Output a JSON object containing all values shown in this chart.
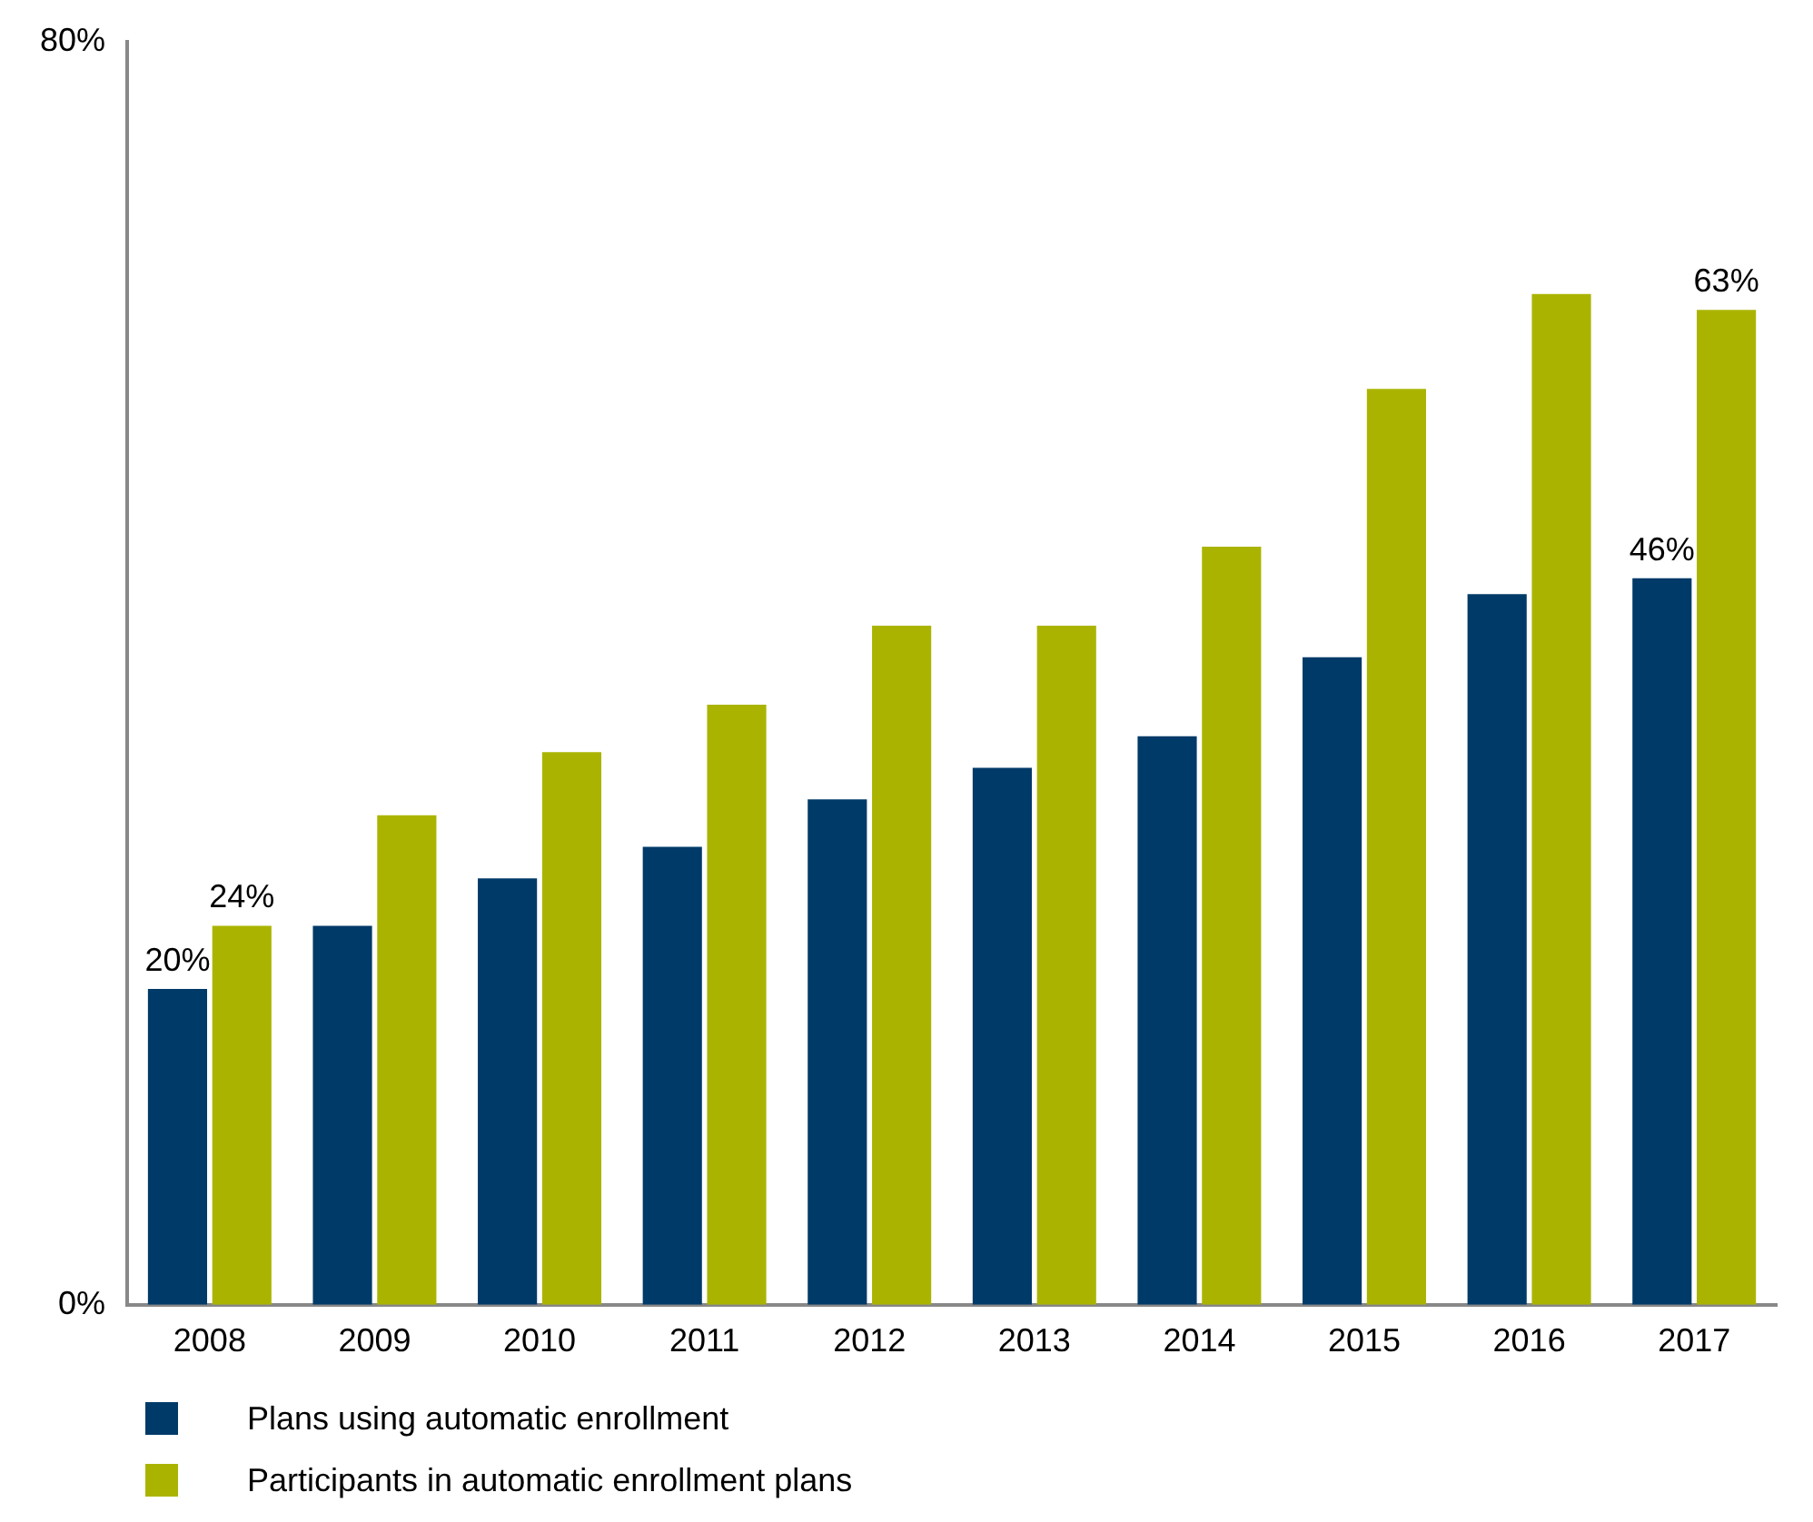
{
  "chart_data": {
    "type": "bar",
    "categories": [
      "2008",
      "2009",
      "2010",
      "2011",
      "2012",
      "2013",
      "2014",
      "2015",
      "2016",
      "2017"
    ],
    "series": [
      {
        "name": "Plans using automatic enrollment",
        "color": "#003a68",
        "values": [
          20,
          24,
          27,
          29,
          32,
          34,
          36,
          41,
          45,
          46
        ],
        "value_labels": [
          "20%",
          null,
          null,
          null,
          null,
          null,
          null,
          null,
          null,
          "46%"
        ]
      },
      {
        "name": "Participants in automatic enrollment plans",
        "color": "#aab400",
        "values": [
          24,
          31,
          35,
          38,
          43,
          43,
          48,
          58,
          64,
          63
        ],
        "value_labels": [
          "24%",
          null,
          null,
          null,
          null,
          null,
          null,
          null,
          null,
          "63%"
        ]
      }
    ],
    "ylim": [
      0,
      80
    ],
    "yticks": [
      {
        "value": 0,
        "label": "0%"
      },
      {
        "value": 80,
        "label": "80%"
      }
    ],
    "grid": false,
    "legend": "bottom left"
  }
}
